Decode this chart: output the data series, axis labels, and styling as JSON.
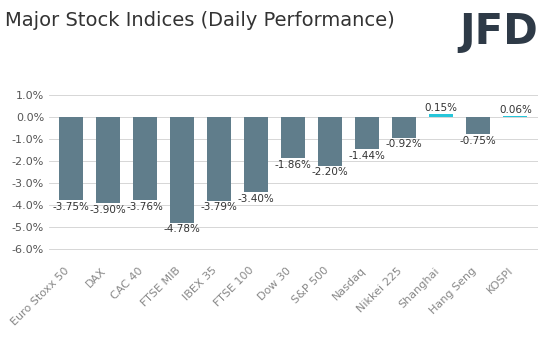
{
  "title": "Major Stock Indices (Daily Performance)",
  "categories": [
    "Euro Stoxx 50",
    "DAX",
    "CAC 40",
    "FTSE MIB",
    "IBEX 35",
    "FTSE 100",
    "Dow 30",
    "S&P 500",
    "Nasdaq",
    "Nikkei 225",
    "Shanghai",
    "Hang Seng",
    "KOSPI"
  ],
  "values": [
    -3.75,
    -3.9,
    -3.76,
    -4.78,
    -3.79,
    -3.4,
    -1.86,
    -2.2,
    -1.44,
    -0.92,
    0.15,
    -0.75,
    0.06
  ],
  "labels": [
    "-3.75%",
    "-3.90%",
    "-3.76%",
    "-4.78%",
    "-3.79%",
    "-3.40%",
    "-1.86%",
    "-2.20%",
    "-1.44%",
    "-0.92%",
    "0.15%",
    "-0.75%",
    "0.06%"
  ],
  "bar_color_default": "#607d8b",
  "bar_color_positive": "#26c6da",
  "ylim": [
    -6.5,
    1.5
  ],
  "yticks": [
    1.0,
    0.0,
    -1.0,
    -2.0,
    -3.0,
    -4.0,
    -5.0,
    -6.0
  ],
  "background_color": "#ffffff",
  "grid_color": "#d0d0d0",
  "title_fontsize": 14,
  "label_fontsize": 7.5,
  "tick_fontsize": 8,
  "jfd_fontsize": 30,
  "jfd_color": "#2e3a47"
}
